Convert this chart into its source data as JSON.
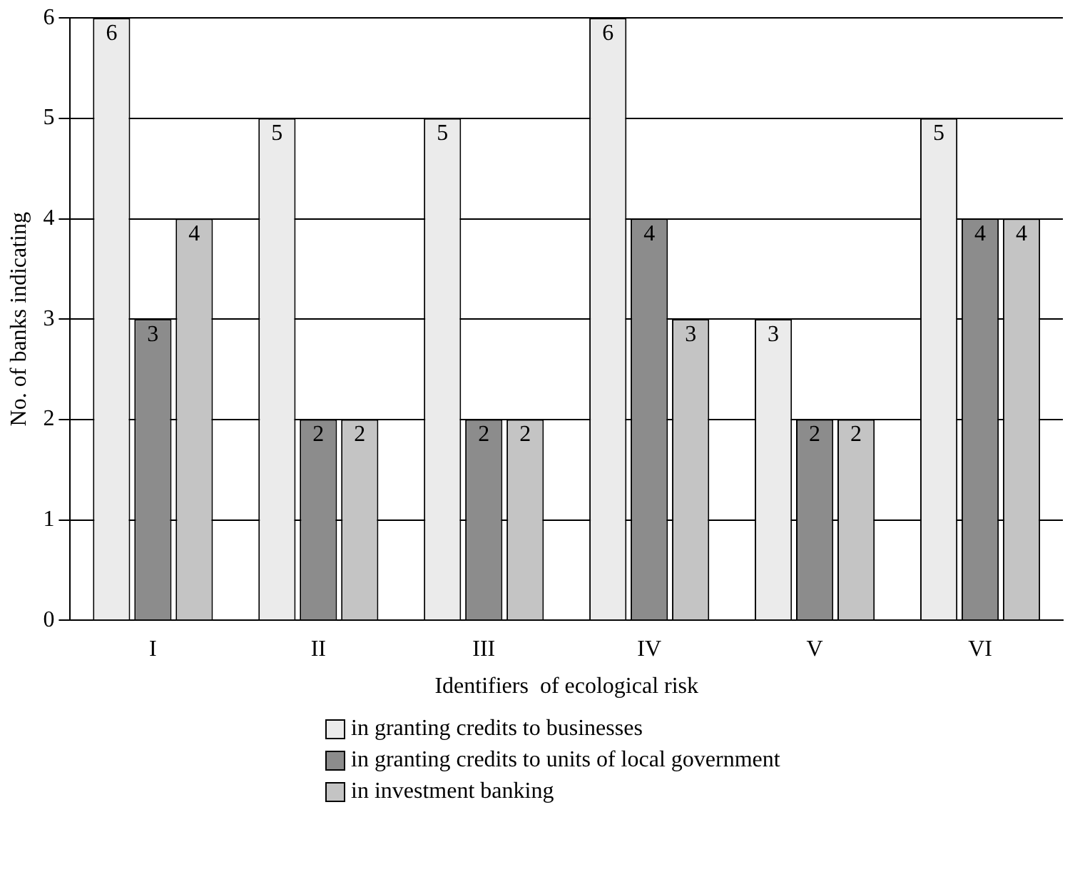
{
  "chart_data": {
    "type": "bar",
    "xlabel": "Identifiers  of ecological risk",
    "ylabel": "No. of banks indicating",
    "categories": [
      "I",
      "II",
      "III",
      "IV",
      "V",
      "VI"
    ],
    "series": [
      {
        "name": "in granting credits to businesses",
        "color": "#ebebeb",
        "values": [
          6,
          5,
          5,
          6,
          3,
          5
        ]
      },
      {
        "name": "in granting credits to units of local government",
        "color": "#8c8c8c",
        "values": [
          3,
          2,
          2,
          4,
          2,
          4
        ]
      },
      {
        "name": "in investment banking",
        "color": "#c4c4c4",
        "values": [
          4,
          2,
          2,
          3,
          2,
          4
        ]
      }
    ],
    "ylim": [
      0,
      6
    ],
    "yticks": [
      0,
      1,
      2,
      3,
      4,
      5,
      6
    ],
    "grid": "y",
    "legend": "bottom",
    "data_labels": true
  }
}
